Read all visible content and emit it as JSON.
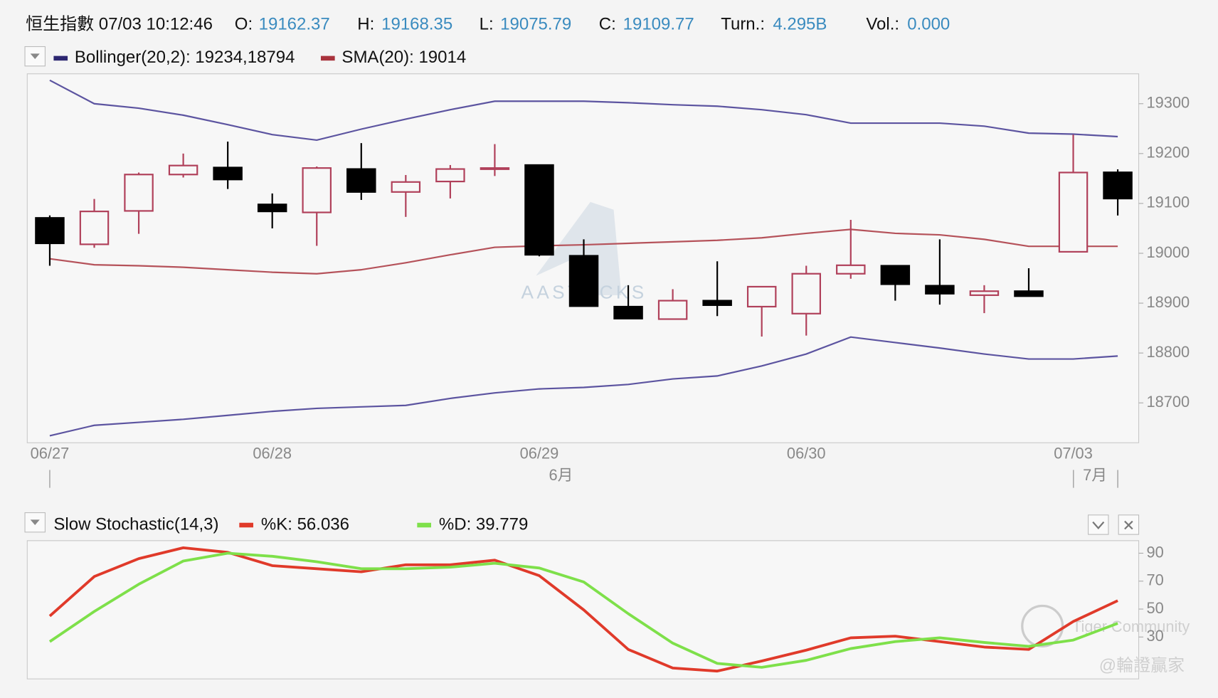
{
  "header": {
    "title": "恒生指數 07/03 10:12:46",
    "fields": [
      {
        "label": "O:",
        "value": "19162.37"
      },
      {
        "label": "H:",
        "value": "19168.35"
      },
      {
        "label": "L:",
        "value": "19075.79"
      },
      {
        "label": "C:",
        "value": "19109.77"
      },
      {
        "label": "Turn.:",
        "value": "4.295B"
      },
      {
        "label": "Vol.:",
        "value": "0.000"
      }
    ]
  },
  "watermarks": [
    "AASTOCKS",
    "Tiger Community",
    "@輪證贏家"
  ],
  "chart_data": [
    {
      "type": "candlestick",
      "categories": [
        "06/27",
        null,
        null,
        null,
        null,
        "06/28",
        null,
        null,
        null,
        null,
        null,
        "06/29",
        null,
        null,
        null,
        null,
        null,
        "06/30",
        null,
        null,
        null,
        null,
        null,
        "07/03",
        null
      ],
      "categories2": [
        null,
        null,
        null,
        null,
        null,
        null,
        null,
        null,
        null,
        null,
        null,
        "6月",
        null,
        null,
        null,
        null,
        null,
        null,
        null,
        null,
        null,
        null,
        null,
        "7月",
        null
      ],
      "open": [
        19071,
        19018,
        19085,
        19158,
        19172,
        19098,
        19082,
        19169,
        19123,
        19144,
        19169,
        19177,
        18995,
        18893,
        18868,
        18905,
        18893,
        18879,
        18959,
        18975,
        18935,
        18916,
        18924,
        19003,
        19162.37
      ],
      "high": [
        19076,
        19109,
        19162,
        19200,
        19224,
        19120,
        19174,
        19221,
        19157,
        19177,
        19219,
        19177,
        19028,
        18936,
        18928,
        18984,
        18933,
        18975,
        19067,
        18975,
        19028,
        18936,
        18970,
        19238,
        19168.35
      ],
      "low": [
        18975,
        19011,
        19039,
        19152,
        19129,
        19050,
        19015,
        19107,
        19073,
        19110,
        19155,
        18994,
        18894,
        18869,
        18868,
        18874,
        18833,
        18835,
        18949,
        18905,
        18897,
        18880,
        18914,
        19003,
        19075.79
      ],
      "close": [
        19020,
        19084,
        19158,
        19176,
        19148,
        19084,
        19171,
        19123,
        19143,
        19169,
        19171,
        18997,
        18894,
        18869,
        18905,
        18896,
        18933,
        18959,
        18976,
        18938,
        18919,
        18924,
        18914,
        19162,
        19109.77
      ],
      "up_color": "#b0405a",
      "down_color": "#000000",
      "series": [
        {
          "name": "Bollinger(20,2): 19234,18794",
          "color": "#5c54a0",
          "upper": [
            19347,
            19300,
            19291,
            19277,
            19258,
            19238,
            19227,
            19249,
            19269,
            19288,
            19305,
            19305,
            19305,
            19302,
            19298,
            19295,
            19288,
            19278,
            19261,
            19261,
            19261,
            19255,
            19241,
            19239,
            19234
          ],
          "lower": [
            18634,
            18655,
            18661,
            18667,
            18675,
            18683,
            18689,
            18692,
            18695,
            18709,
            18720,
            18728,
            18731,
            18737,
            18748,
            18754,
            18774,
            18798,
            18832,
            18821,
            18810,
            18798,
            18788,
            18788,
            18794
          ]
        },
        {
          "name": "SMA(20): 19014",
          "color": "#b5525a",
          "values": [
            18989,
            18977,
            18975,
            18972,
            18967,
            18962,
            18959,
            18967,
            18981,
            18997,
            19012,
            19015,
            19017,
            19020,
            19023,
            19026,
            19031,
            19040,
            19048,
            19040,
            19037,
            19028,
            19014,
            19014,
            19014
          ]
        }
      ],
      "ylim": [
        18620,
        19360
      ],
      "yticks": [
        18700,
        18800,
        18900,
        19000,
        19100,
        19200,
        19300
      ],
      "grid": false
    },
    {
      "type": "line",
      "title": "Slow Stochastic(14,3)",
      "series": [
        {
          "name": "%K: 56.036",
          "color": "#e03a2a",
          "values": [
            45,
            73.3,
            86.1,
            93.9,
            90.6,
            81.1,
            78.9,
            76.7,
            81.7,
            81.7,
            85,
            73.9,
            49.4,
            21.1,
            7.8,
            5.6,
            12.8,
            20.6,
            29.4,
            30.6,
            26.7,
            22.8,
            21.1,
            41.1,
            56.036
          ]
        },
        {
          "name": "%D: 39.779",
          "color": "#7ee04a",
          "values": [
            26.7,
            48.3,
            67.8,
            84.4,
            90,
            87.8,
            83.9,
            78.9,
            78.9,
            80,
            82.8,
            79.4,
            69.4,
            46.7,
            25.6,
            11.1,
            8.3,
            13.3,
            21.7,
            26.7,
            29.4,
            26.1,
            23.3,
            27.8,
            39.779
          ]
        }
      ],
      "ylim": [
        0,
        99
      ],
      "yticks": [
        30,
        50,
        70,
        90
      ],
      "grid": false
    }
  ]
}
